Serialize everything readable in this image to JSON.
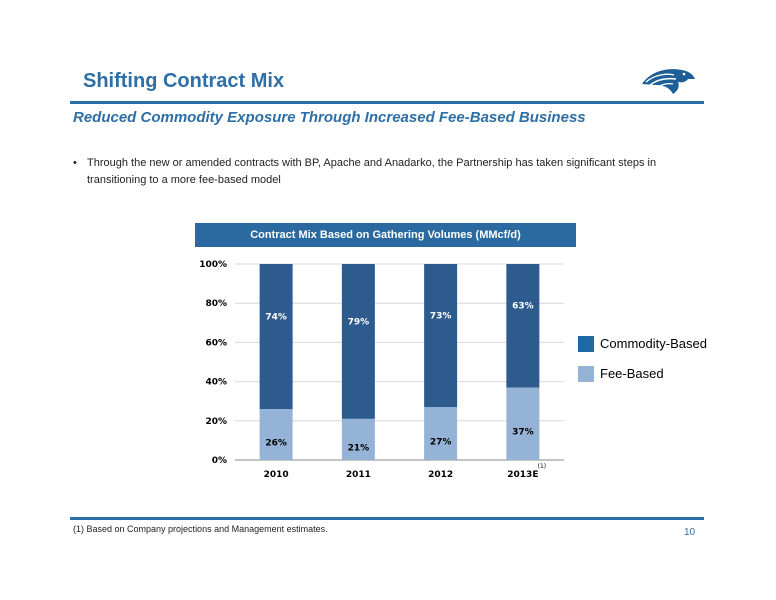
{
  "header": {
    "title": "Shifting Contract Mix",
    "subtitle": "Reduced Commodity Exposure Through Increased Fee-Based Business",
    "accent_color": "#2a6ea6",
    "logo_icon": "eagle-head-logo"
  },
  "body": {
    "bullet_marker": "•",
    "bullet_text": "Through the new or amended contracts with BP, Apache and Anadarko, the Partnership has taken significant steps in transitioning to a more fee-based model"
  },
  "chart_header": "Contract Mix Based on Gathering Volumes (MMcf/d)",
  "chart_data": {
    "type": "bar",
    "stacked": true,
    "categories": [
      "2010",
      "2011",
      "2012",
      "2013E"
    ],
    "category_footnote_marker": "(1)",
    "ylim": [
      0,
      100
    ],
    "y_ticks": [
      "0%",
      "20%",
      "40%",
      "60%",
      "80%",
      "100%"
    ],
    "grid": true,
    "legend_placement": "right",
    "series": [
      {
        "name": "Fee-Based",
        "values": [
          26,
          21,
          27,
          37
        ],
        "labels": [
          "26%",
          "21%",
          "27%",
          "37%"
        ],
        "color": "#95b3d7"
      },
      {
        "name": "Commodity-Based",
        "values": [
          74,
          79,
          73,
          63
        ],
        "labels": [
          "74%",
          "79%",
          "73%",
          "63%"
        ],
        "color": "#2e5b8e"
      }
    ]
  },
  "legend": {
    "commodity_label": "Commodity-Based",
    "commodity_color": "#1f6aa5",
    "fee_label": "Fee-Based",
    "fee_color": "#95b3d7"
  },
  "footer": {
    "footnote": "(1) Based on Company projections and Management estimates.",
    "page_number": "10"
  }
}
